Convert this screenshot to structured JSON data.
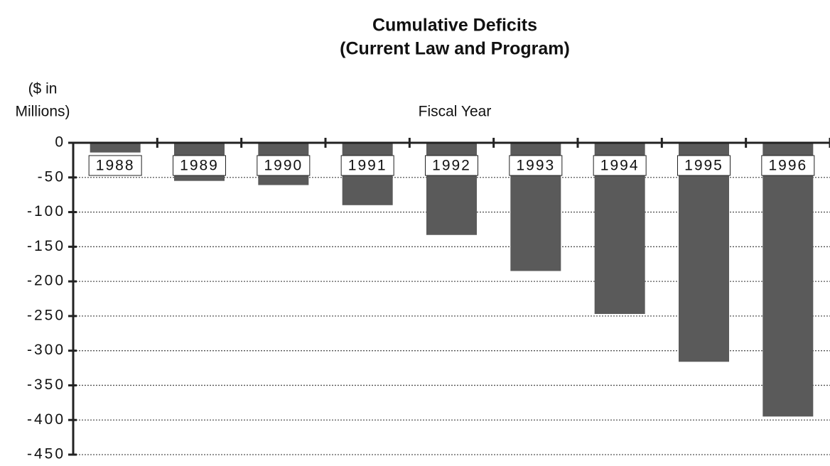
{
  "chart_data": {
    "type": "bar",
    "title": "Cumulative Deficits",
    "subtitle": "(Current Law and Program)",
    "y_axis_label": [
      "($ in",
      "Millions)"
    ],
    "x_axis_label": "Fiscal Year",
    "categories": [
      "1988",
      "1989",
      "1990",
      "1991",
      "1992",
      "1993",
      "1994",
      "1995",
      "1996"
    ],
    "values": [
      -14,
      -55,
      -61,
      -90,
      -133,
      -185,
      -247,
      -316,
      -395
    ],
    "color": "#5a5a5a",
    "ylim": [
      -450,
      0
    ],
    "yticks": [
      0,
      -50,
      -100,
      -150,
      -200,
      -250,
      -300,
      -350,
      -400,
      -450
    ],
    "grid": true
  }
}
